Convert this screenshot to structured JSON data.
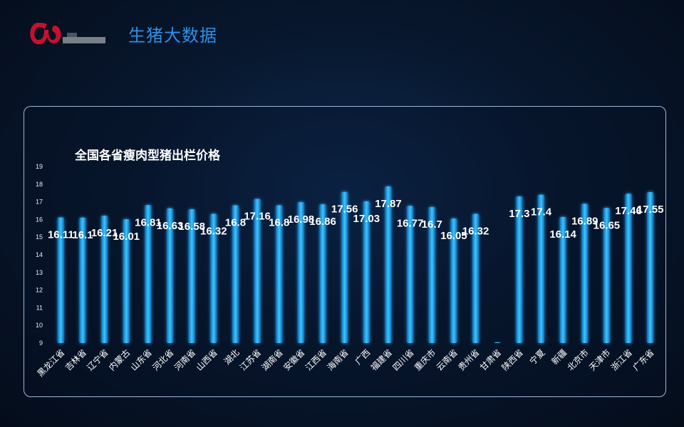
{
  "header": {
    "app_title": "生猪大数据"
  },
  "colors": {
    "bar": "#1ea8e8",
    "bar_glow": "#35c2ff",
    "text": "#ffffff",
    "panel_border": "#9fb6d4"
  },
  "chart_data": {
    "type": "bar",
    "title": "全国各省瘦肉型猪出栏价格",
    "xlabel": "",
    "ylabel": "",
    "ylim": [
      9,
      19
    ],
    "yticks": [
      9,
      10,
      11,
      12,
      13,
      14,
      15,
      16,
      17,
      18,
      19
    ],
    "categories": [
      "黑龙江省",
      "吉林省",
      "辽宁省",
      "内蒙古",
      "山东省",
      "河北省",
      "河南省",
      "山西省",
      "湖北",
      "江苏省",
      "湖南省",
      "安徽省",
      "江西省",
      "海南省",
      "广西",
      "福建省",
      "四川省",
      "重庆市",
      "云南省",
      "贵州省",
      "甘肃省",
      "陕西省",
      "宁夏",
      "新疆",
      "北京市",
      "天津市",
      "浙江省",
      "广东省"
    ],
    "values": [
      16.11,
      16.1,
      16.21,
      16.01,
      16.81,
      16.63,
      16.58,
      16.32,
      16.8,
      17.16,
      16.8,
      16.98,
      16.86,
      17.56,
      17.03,
      17.87,
      16.77,
      16.7,
      16.05,
      16.32,
      9.05,
      17.3,
      17.4,
      16.14,
      16.89,
      16.65,
      17.46,
      17.55
    ],
    "labels": [
      "16.11",
      "16.1",
      "16.21",
      "16.01",
      "16.81",
      "16.63",
      "16.58",
      "16.32",
      "16.8",
      "17.16",
      "16.8",
      "16.98",
      "16.86",
      "17.56",
      "17.03",
      "17.87",
      "16.77",
      "16.7",
      "16.05",
      "16.32",
      "",
      "17.3",
      "17.4",
      "16.14",
      "16.89",
      "16.65",
      "17.46",
      "17.55"
    ],
    "grid": false,
    "legend": "none"
  }
}
